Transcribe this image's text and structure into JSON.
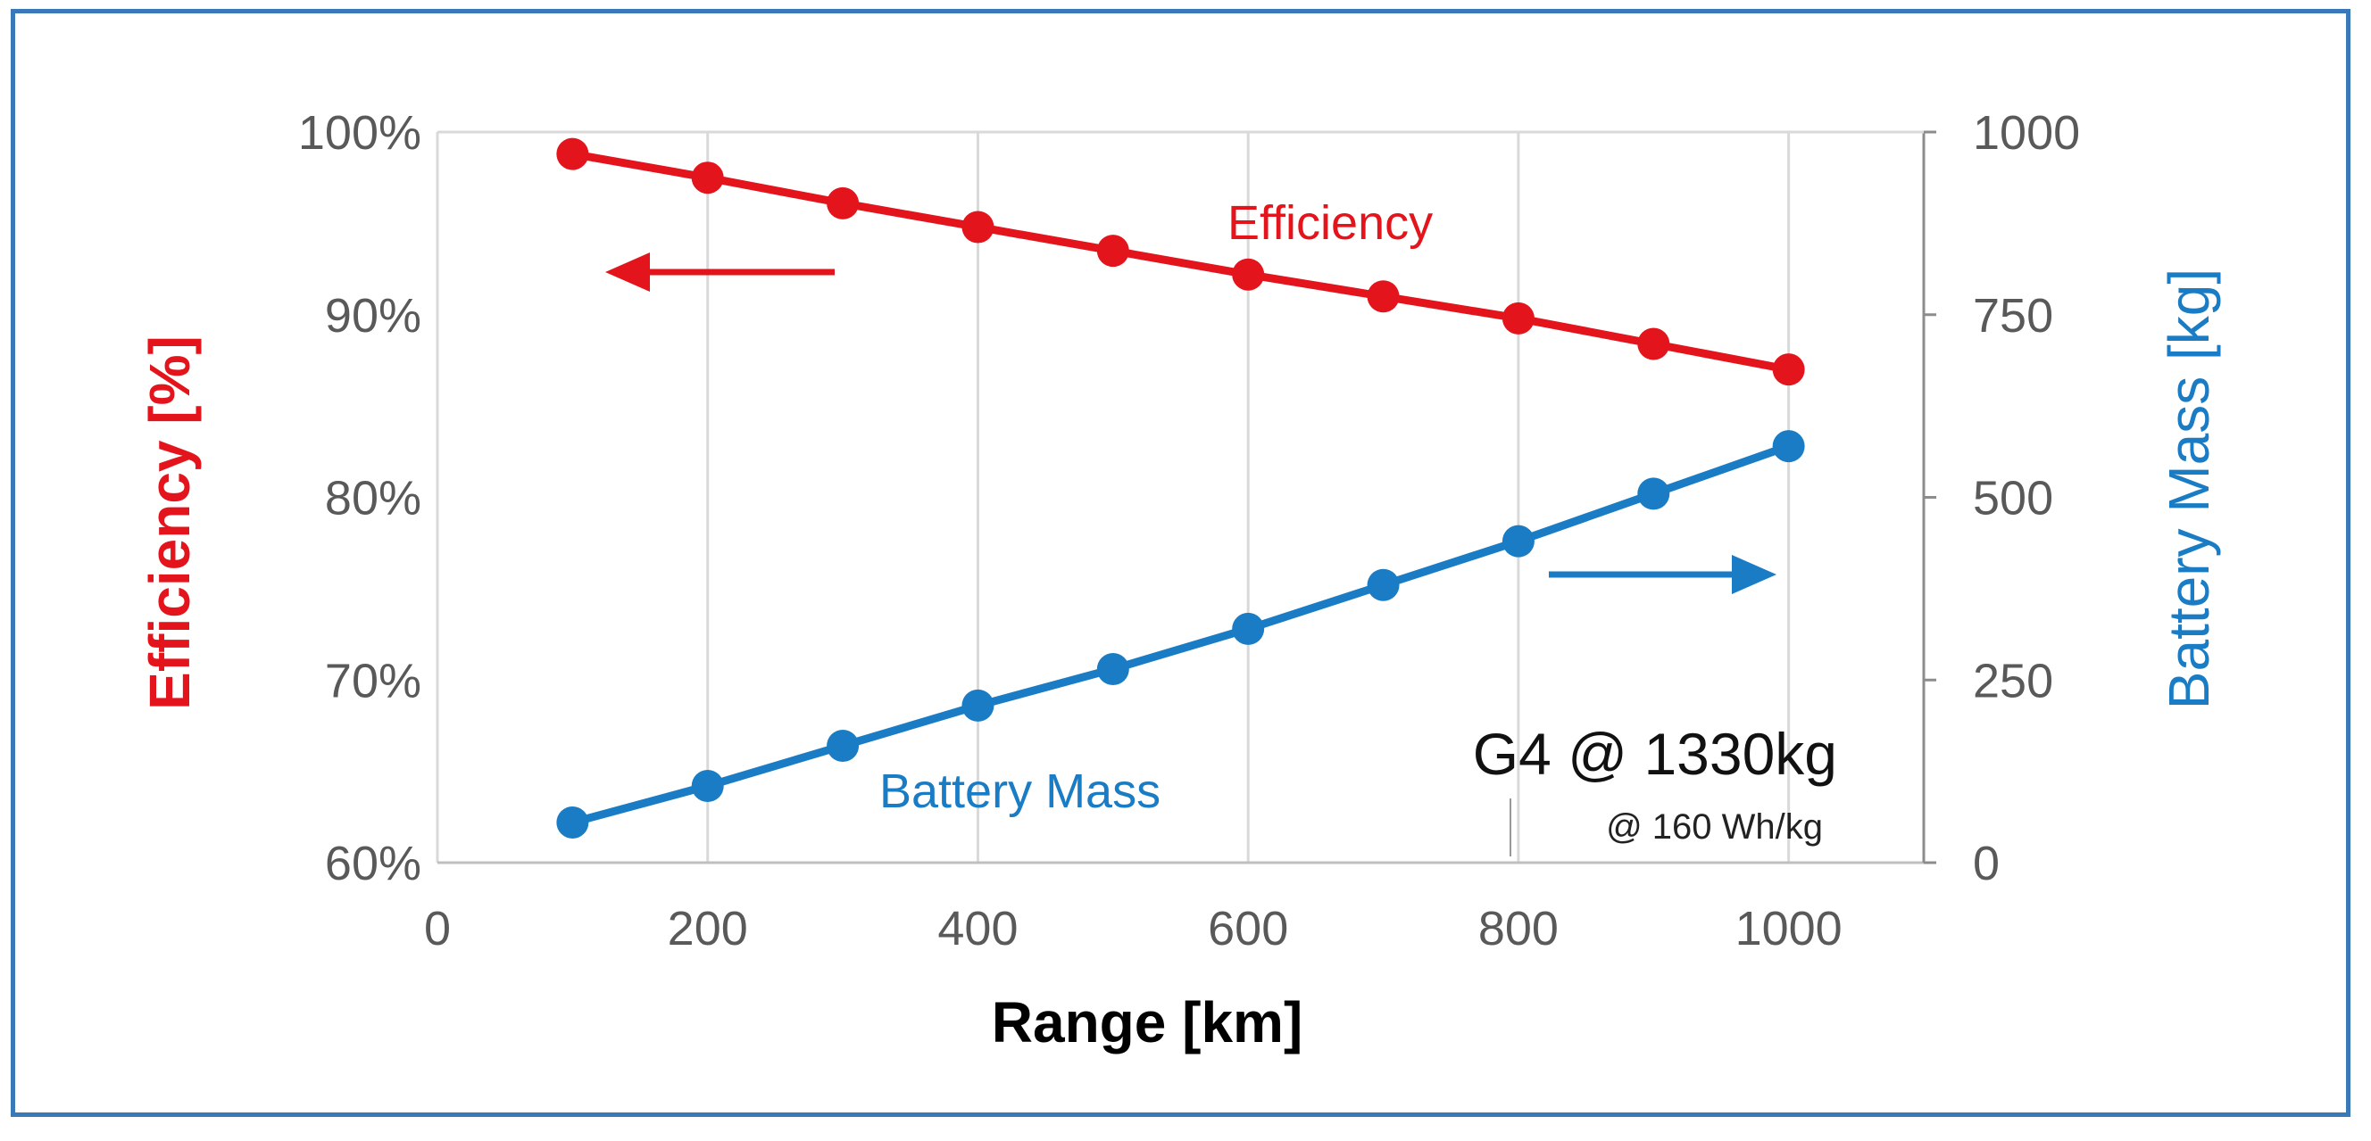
{
  "chart_data": {
    "type": "line",
    "x": [
      100,
      200,
      300,
      400,
      500,
      600,
      700,
      800,
      900,
      1000
    ],
    "xlabel": "Range [km]",
    "xlim": [
      0,
      1100
    ],
    "xticks": [
      "0",
      "200",
      "400",
      "600",
      "800",
      "1000"
    ],
    "xtick_values": [
      0,
      200,
      400,
      600,
      800,
      1000
    ],
    "ylabel_left": "Efficiency [%]",
    "ylim_left": [
      60,
      100
    ],
    "yticks_left": [
      "60%",
      "70%",
      "80%",
      "90%",
      "100%"
    ],
    "ytick_values_left": [
      60,
      70,
      80,
      90,
      100
    ],
    "ylabel_right": "Battery Mass [kg]",
    "ylim_right": [
      0,
      1000
    ],
    "yticks_right": [
      "0",
      "250",
      "500",
      "750",
      "1000"
    ],
    "ytick_values_right": [
      0,
      250,
      500,
      750,
      1000
    ],
    "grid": "vertical",
    "series": [
      {
        "name": "Efficiency",
        "axis": "left",
        "color": "#e3141b",
        "values": [
          98.8,
          97.5,
          96.1,
          94.8,
          93.5,
          92.2,
          91.0,
          89.8,
          88.4,
          87.0
        ]
      },
      {
        "name": "Battery Mass",
        "axis": "right",
        "color": "#1a7cc4",
        "values": [
          55,
          105,
          160,
          215,
          265,
          320,
          380,
          440,
          505,
          570
        ]
      }
    ],
    "annotations": {
      "efficiency_label": "Efficiency",
      "battery_label": "Battery Mass",
      "vehicle": "G4 @ 1330kg",
      "energy_density": "@ 160 Wh/kg"
    }
  }
}
